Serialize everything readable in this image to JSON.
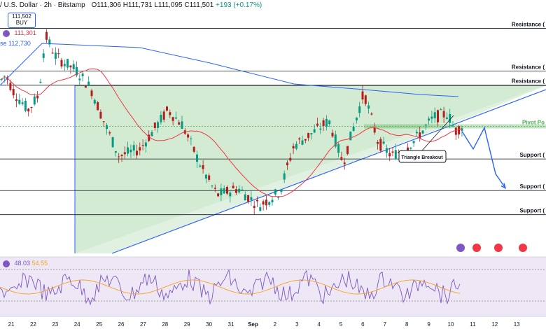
{
  "header": {
    "symbol": "/ U.S. Dollar · 2h · Bitstamp",
    "ohlc": "O111,306 H111,731 L111,095 C111,501",
    "change": "+193 (+0.17%)"
  },
  "buy_box": {
    "price": "111,502",
    "label": "BUY"
  },
  "indicators": [
    {
      "label": "111,301",
      "color": "#f23645"
    },
    {
      "label": "se  112,730",
      "color": "#2962ff"
    }
  ],
  "rsi": {
    "value": "48.03",
    "ma_value": "54.55",
    "value_color": "#7e57c2",
    "ma_color": "#f7a21b"
  },
  "chart_data": {
    "type": "candlestick",
    "x_ticks": [
      "21",
      "22",
      "23",
      "24",
      "25",
      "26",
      "27",
      "28",
      "29",
      "30",
      "31",
      "Sep",
      "2",
      "3",
      "4",
      "5",
      "6",
      "7",
      "8",
      "9",
      "10",
      "11",
      "12",
      "13"
    ],
    "horizontal_levels": [
      {
        "name": "Resistance (",
        "value": 114200
      },
      {
        "name": "Resistance (",
        "value": 113000
      },
      {
        "name": "Resistance (",
        "value": 112600
      },
      {
        "name": "Pivot Po",
        "value": 111440
      },
      {
        "name": "Support (",
        "value": 110520
      },
      {
        "name": "Support (",
        "value": 109630
      },
      {
        "name": "Support (",
        "value": 108950
      }
    ],
    "annotation": "Triangle Breakout",
    "moving_average_colors": {
      "red": "#f23645",
      "blue": "#2962ff"
    },
    "projection": [
      111300,
      110800,
      111400,
      110100,
      109700
    ],
    "candle_colors": {
      "up": "#089981",
      "down": "#b71c1c"
    }
  }
}
